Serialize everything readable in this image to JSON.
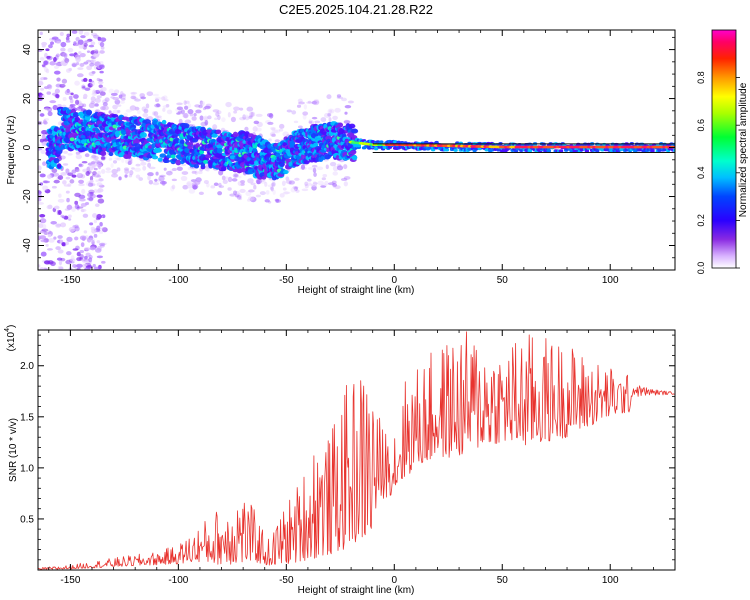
{
  "title": "C2E5.2025.104.21.28.R22",
  "chart_data": [
    {
      "type": "heatmap",
      "xlabel": "Height of straight line (km)",
      "ylabel": "Frequency (Hz)",
      "xlim": [
        -165,
        130
      ],
      "ylim": [
        -50,
        48
      ],
      "xticks": [
        -150,
        -100,
        -50,
        0,
        50,
        100
      ],
      "yticks": [
        -40,
        -20,
        0,
        20,
        40
      ],
      "grid": false,
      "colorbar": {
        "label": "Normalized spectral amplitude",
        "range": [
          0,
          1
        ],
        "ticks": [
          "0.0",
          "0.2",
          "0.4",
          "0.6",
          "0.8"
        ],
        "colormap": "rainbow (white→violet→blue→cyan→green→yellow→red→magenta)"
      },
      "features": {
        "noise_cloud_x_range": [
          -165,
          -140
        ],
        "spectral_band_center_hz": [
          {
            "x": -155,
            "y": 8
          },
          {
            "x": -130,
            "y": 5
          },
          {
            "x": -110,
            "y": 3
          },
          {
            "x": -90,
            "y": 0
          },
          {
            "x": -70,
            "y": -2
          },
          {
            "x": -55,
            "y": -6
          },
          {
            "x": -45,
            "y": 0
          },
          {
            "x": -30,
            "y": 3
          },
          {
            "x": -20,
            "y": 2
          },
          {
            "x": -10,
            "y": 1
          },
          {
            "x": 0,
            "y": 1
          },
          {
            "x": 50,
            "y": 0
          },
          {
            "x": 130,
            "y": 0
          }
        ],
        "reference_lines_hz": [
          1.5,
          -2.0
        ]
      },
      "colors": {
        "marker_line": "#111111"
      }
    },
    {
      "type": "line",
      "xlabel": "Height of straight line (km)",
      "ylabel": "SNR (10 * v/v)",
      "y_scale_label": "(x10",
      "y_scale_exponent": "4",
      "xlim": [
        -165,
        130
      ],
      "ylim": [
        0,
        2.35
      ],
      "xticks": [
        -150,
        -100,
        -50,
        0,
        50,
        100
      ],
      "yticks": [
        "0.5",
        "1.0",
        "1.5",
        "2.0"
      ],
      "grid": false,
      "series": [
        {
          "color": "#e8332e",
          "envelope": {
            "x": [
              -165,
              -150,
              -130,
              -110,
              -100,
              -90,
              -80,
              -72,
              -65,
              -58,
              -52,
              -46,
              -40,
              -35,
              -30,
              -25,
              -20,
              -15,
              -11,
              -8,
              -5,
              0,
              5,
              10,
              20,
              30,
              40,
              50,
              60,
              70,
              80,
              90,
              100,
              110,
              120,
              130
            ],
            "lower": [
              0.0,
              0.01,
              0.03,
              0.05,
              0.06,
              0.08,
              0.05,
              0.06,
              0.08,
              0.04,
              0.05,
              0.07,
              0.1,
              0.12,
              0.15,
              0.18,
              0.25,
              0.3,
              0.3,
              0.6,
              0.7,
              0.75,
              0.9,
              1.0,
              1.1,
              1.1,
              1.2,
              1.25,
              1.2,
              1.25,
              1.3,
              1.4,
              1.5,
              1.55,
              1.65,
              1.7
            ],
            "upper": [
              0.02,
              0.05,
              0.12,
              0.18,
              0.25,
              0.45,
              0.65,
              0.85,
              0.6,
              0.3,
              0.6,
              0.8,
              1.1,
              1.5,
              1.3,
              1.7,
              1.9,
              2.0,
              2.1,
              1.6,
              1.4,
              1.5,
              1.9,
              2.0,
              2.2,
              2.35,
              2.35,
              2.2,
              2.35,
              2.3,
              2.25,
              2.1,
              2.0,
              1.9,
              1.8,
              1.75
            ]
          }
        }
      ]
    }
  ]
}
